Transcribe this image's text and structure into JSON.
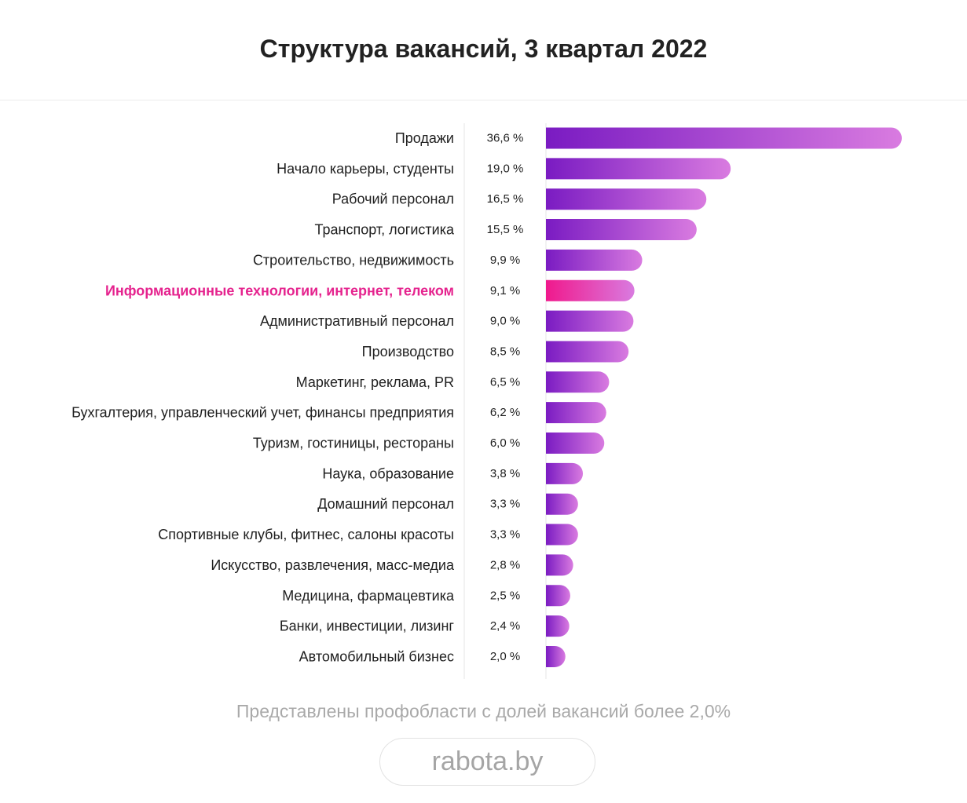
{
  "chart_data": {
    "type": "bar",
    "orientation": "horizontal",
    "title": "Структура вакансий, 3 квартал 2022",
    "highlight": "Информационные технологии, интернет, телеком",
    "categories": [
      "Продажи",
      "Начало карьеры, студенты",
      "Рабочий персонал",
      "Транспорт, логистика",
      "Строительство, недвижимость",
      "Информационные технологии, интернет, телеком",
      "Административный персонал",
      "Производство",
      "Маркетинг, реклама, PR",
      "Бухгалтерия, управленческий учет, финансы предприятия",
      "Туризм, гостиницы, рестораны",
      "Наука, образование",
      "Домашний персонал",
      "Спортивные клубы, фитнес, салоны красоты",
      "Искусство, развлечения, масс-медиа",
      "Медицина, фармацевтика",
      "Банки, инвестиции, лизинг",
      "Автомобильный бизнес"
    ],
    "values": [
      36.6,
      19.0,
      16.5,
      15.5,
      9.9,
      9.1,
      9.0,
      8.5,
      6.5,
      6.2,
      6.0,
      3.8,
      3.3,
      3.3,
      2.8,
      2.5,
      2.4,
      2.0
    ],
    "value_labels": [
      "36,6 %",
      "19,0 %",
      "16,5 %",
      "15,5 %",
      "9,9 %",
      "9,1 %",
      "9,0 %",
      "8,5 %",
      "6,5 %",
      "6,2 %",
      "6,0 %",
      "3,8 %",
      "3,3 %",
      "3,3 %",
      "2,8 %",
      "2,5 %",
      "2,4 %",
      "2,0 %"
    ],
    "unit": "%",
    "xlim": [
      0,
      36.6
    ],
    "colors": {
      "bar_start": "#7a1bc2",
      "bar_end": "#d97be0",
      "highlight_start": "#f0198c",
      "highlight_end": "#d97be0",
      "highlight_text": "#e5238e"
    }
  },
  "footnote": "Представлены профобласти с долей вакансий более 2,0%",
  "brand": "rabota.by"
}
